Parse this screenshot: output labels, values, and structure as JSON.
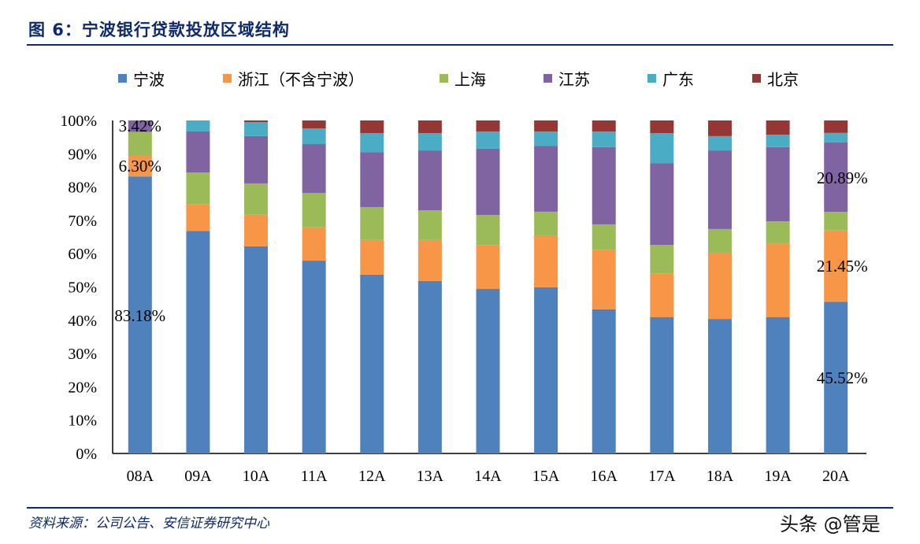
{
  "title": "图 6：宁波银行贷款投放区域结构",
  "source": "资料来源：公司公告、安信证券研究中心",
  "watermark": "头条 @管是",
  "chart_data": {
    "type": "bar",
    "stacked": true,
    "categories": [
      "08A",
      "09A",
      "10A",
      "11A",
      "12A",
      "13A",
      "14A",
      "15A",
      "16A",
      "17A",
      "18A",
      "19A",
      "20A"
    ],
    "ylim": [
      0,
      100
    ],
    "yticks": [
      "0%",
      "10%",
      "20%",
      "30%",
      "40%",
      "50%",
      "60%",
      "70%",
      "80%",
      "90%",
      "100%"
    ],
    "grid": false,
    "legend_position": "top",
    "series": [
      {
        "name": "宁波",
        "color": "#4f81bd",
        "values": [
          83.18,
          66.8,
          62.2,
          57.9,
          53.7,
          51.8,
          49.4,
          49.9,
          43.3,
          40.9,
          40.4,
          40.9,
          45.52
        ]
      },
      {
        "name": "浙江（不含宁波）",
        "color": "#f79646",
        "values": [
          6.3,
          8.1,
          9.5,
          10.0,
          10.4,
          12.3,
          13.2,
          15.6,
          17.9,
          13.2,
          19.9,
          22.2,
          21.45
        ]
      },
      {
        "name": "上海",
        "color": "#9bbb59",
        "values": [
          7.1,
          9.5,
          9.4,
          10.3,
          9.9,
          8.9,
          9.0,
          7.1,
          7.6,
          8.5,
          7.1,
          6.6,
          5.6
        ]
      },
      {
        "name": "江苏",
        "color": "#8064a2",
        "values": [
          3.42,
          12.3,
          14.2,
          14.7,
          16.5,
          18.0,
          19.9,
          19.8,
          23.2,
          24.6,
          23.6,
          22.3,
          20.89
        ]
      },
      {
        "name": "广东",
        "color": "#4bacc6",
        "values": [
          0,
          3.3,
          4.2,
          4.7,
          5.7,
          5.2,
          5.2,
          4.3,
          4.7,
          9.0,
          4.3,
          3.7,
          2.8
        ]
      },
      {
        "name": "北京",
        "color": "#953735",
        "values": [
          0,
          0,
          0.5,
          2.4,
          3.8,
          3.8,
          3.3,
          3.3,
          3.3,
          3.8,
          4.7,
          4.3,
          3.74
        ]
      }
    ],
    "data_labels": [
      {
        "category": "08A",
        "series": "宁波",
        "text": "83.18%"
      },
      {
        "category": "08A",
        "series": "浙江（不含宁波）",
        "text": "6.30%"
      },
      {
        "category": "08A",
        "series": "江苏",
        "text": "3.42%"
      },
      {
        "category": "20A",
        "series": "宁波",
        "text": "45.52%"
      },
      {
        "category": "20A",
        "series": "浙江（不含宁波）",
        "text": "21.45%"
      },
      {
        "category": "20A",
        "series": "江苏",
        "text": "20.89%"
      }
    ]
  }
}
